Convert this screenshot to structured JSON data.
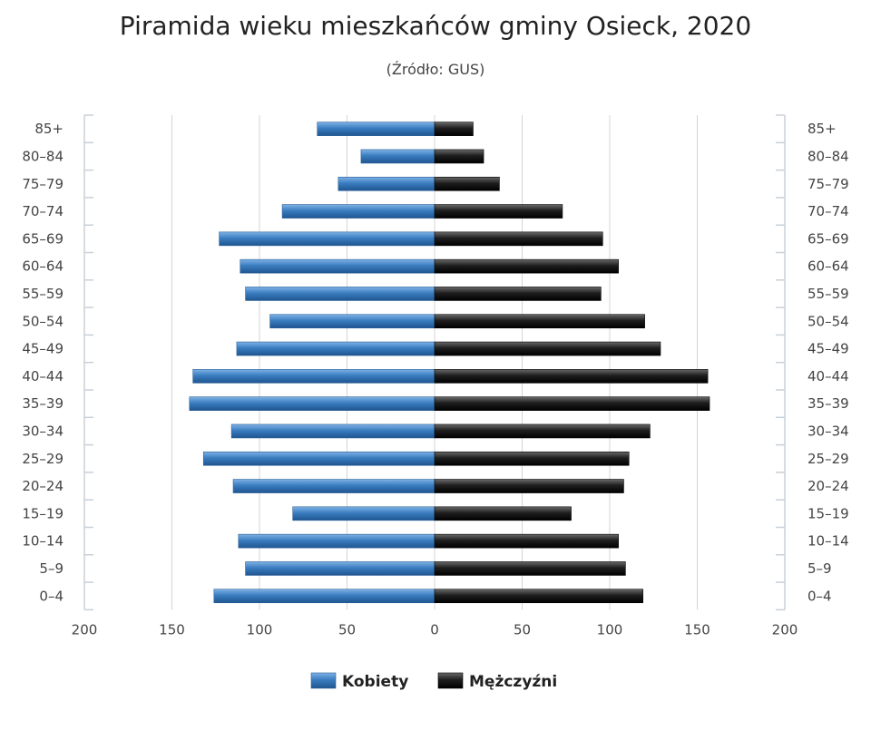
{
  "chart_data": {
    "type": "bar",
    "orientation": "horizontal",
    "layout": "population-pyramid",
    "title": "Piramida wieku mieszkańców gminy Osieck, 2020",
    "subtitle": "(Źródło: GUS)",
    "categories": [
      "85+",
      "80–84",
      "75–79",
      "70–74",
      "65–69",
      "60–64",
      "55–59",
      "50–54",
      "45–49",
      "40–44",
      "35–39",
      "30–34",
      "25–29",
      "20–24",
      "15–19",
      "10–14",
      "5–9",
      "0–4"
    ],
    "series": [
      {
        "name": "Kobiety",
        "color": "#3a7dc0",
        "side": "left",
        "values": [
          67,
          42,
          55,
          87,
          123,
          111,
          108,
          94,
          113,
          138,
          140,
          116,
          132,
          115,
          81,
          112,
          108,
          126
        ]
      },
      {
        "name": "Mężczyźni",
        "color": "#1c1c1c",
        "side": "right",
        "values": [
          22,
          28,
          37,
          73,
          96,
          105,
          95,
          120,
          129,
          156,
          157,
          123,
          111,
          108,
          78,
          105,
          109,
          119
        ]
      }
    ],
    "xlim": [
      -200,
      200
    ],
    "x_ticks": [
      -200,
      -150,
      -100,
      -50,
      0,
      50,
      100,
      150,
      200
    ],
    "x_tick_labels": [
      "200",
      "150",
      "100",
      "50",
      "0",
      "50",
      "100",
      "150",
      "200"
    ],
    "grid": true,
    "legend_position": "bottom-center"
  }
}
